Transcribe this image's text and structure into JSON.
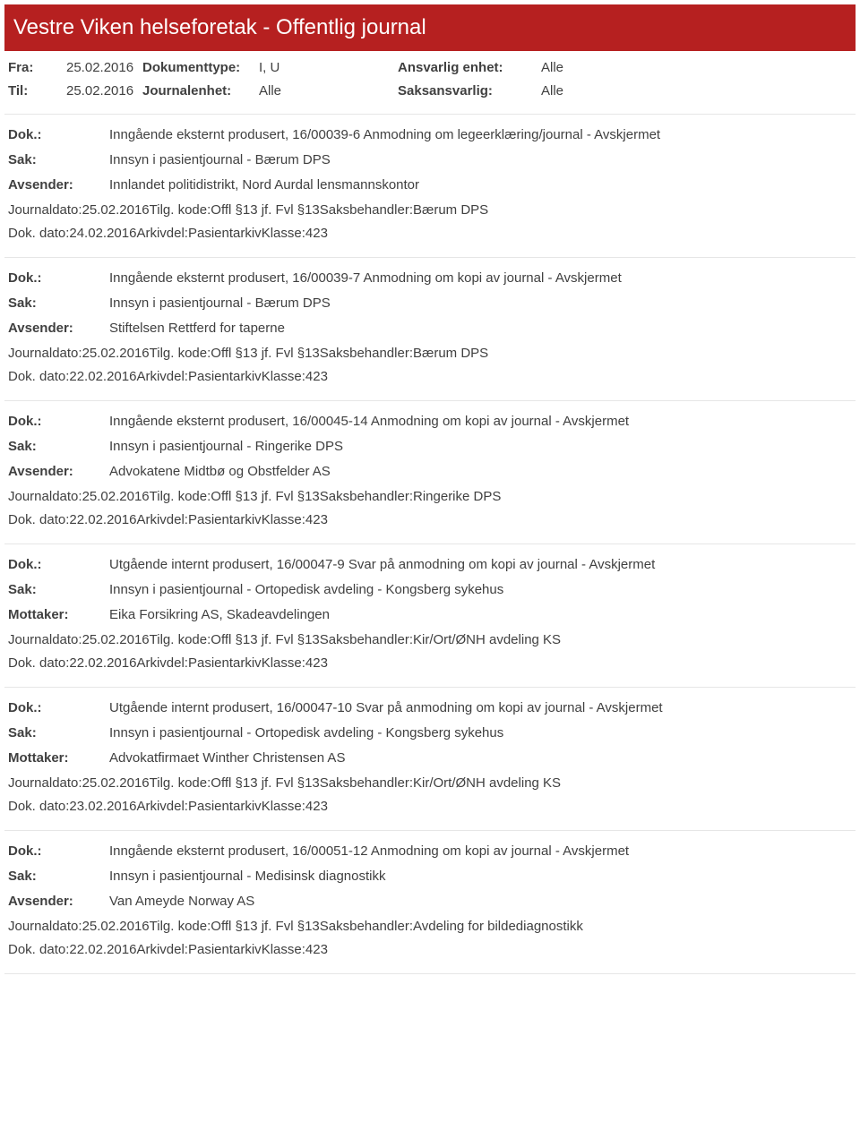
{
  "header": {
    "title": "Vestre Viken helseforetak - Offentlig journal"
  },
  "filters": {
    "fra_label": "Fra:",
    "fra_value": "25.02.2016",
    "til_label": "Til:",
    "til_value": "25.02.2016",
    "doktype_label": "Dokumenttype:",
    "doktype_value": "I, U",
    "journalenhet_label": "Journalenhet:",
    "journalenhet_value": "Alle",
    "ansvarlig_label": "Ansvarlig enhet:",
    "ansvarlig_value": "Alle",
    "saksansvarlig_label": "Saksansvarlig:",
    "saksansvarlig_value": "Alle"
  },
  "labels": {
    "dok": "Dok.:",
    "sak": "Sak:",
    "avsender": "Avsender:",
    "mottaker": "Mottaker:",
    "journaldato": "Journaldato:",
    "dokdato": "Dok. dato:",
    "tilgkode": "Tilg. kode:",
    "arkivdel": "Arkivdel:",
    "saksbehandler": "Saksbehandler:",
    "klasse": "Klasse:"
  },
  "entries": [
    {
      "dok": "Inngående eksternt produsert, 16/00039-6 Anmodning om legeerklæring/journal - Avskjermet",
      "sak": "Innsyn i pasientjournal - Bærum DPS",
      "party_label": "Avsender:",
      "party_value": "Innlandet politidistrikt, Nord Aurdal lensmannskontor",
      "journaldato": "25.02.2016",
      "tilgkode": "Offl §13 jf. Fvl §13",
      "saksbehandler": "Bærum DPS",
      "dokdato": "24.02.2016",
      "arkivdel": "Pasientarkiv",
      "klasse": "423"
    },
    {
      "dok": "Inngående eksternt produsert, 16/00039-7 Anmodning om kopi av journal - Avskjermet",
      "sak": "Innsyn i pasientjournal - Bærum DPS",
      "party_label": "Avsender:",
      "party_value": "Stiftelsen Rettferd for taperne",
      "journaldato": "25.02.2016",
      "tilgkode": "Offl §13 jf. Fvl §13",
      "saksbehandler": "Bærum DPS",
      "dokdato": "22.02.2016",
      "arkivdel": "Pasientarkiv",
      "klasse": "423"
    },
    {
      "dok": "Inngående eksternt produsert, 16/00045-14 Anmodning om kopi av journal - Avskjermet",
      "sak": "Innsyn i pasientjournal - Ringerike DPS",
      "party_label": "Avsender:",
      "party_value": "Advokatene Midtbø og Obstfelder AS",
      "journaldato": "25.02.2016",
      "tilgkode": "Offl §13 jf. Fvl §13",
      "saksbehandler": "Ringerike DPS",
      "dokdato": "22.02.2016",
      "arkivdel": "Pasientarkiv",
      "klasse": "423"
    },
    {
      "dok": "Utgående internt produsert, 16/00047-9 Svar på anmodning om kopi av journal - Avskjermet",
      "sak": "Innsyn i pasientjournal - Ortopedisk avdeling - Kongsberg sykehus",
      "party_label": "Mottaker:",
      "party_value": "Eika Forsikring AS, Skadeavdelingen",
      "journaldato": "25.02.2016",
      "tilgkode": "Offl §13 jf. Fvl §13",
      "saksbehandler": "Kir/Ort/ØNH avdeling KS",
      "dokdato": "22.02.2016",
      "arkivdel": "Pasientarkiv",
      "klasse": "423"
    },
    {
      "dok": "Utgående internt produsert, 16/00047-10 Svar på anmodning om kopi av journal - Avskjermet",
      "sak": "Innsyn i pasientjournal - Ortopedisk avdeling - Kongsberg sykehus",
      "party_label": "Mottaker:",
      "party_value": "Advokatfirmaet Winther Christensen AS",
      "journaldato": "25.02.2016",
      "tilgkode": "Offl §13 jf. Fvl §13",
      "saksbehandler": "Kir/Ort/ØNH avdeling KS",
      "dokdato": "23.02.2016",
      "arkivdel": "Pasientarkiv",
      "klasse": "423"
    },
    {
      "dok": "Inngående eksternt produsert, 16/00051-12 Anmodning om kopi av journal - Avskjermet",
      "sak": "Innsyn i pasientjournal - Medisinsk diagnostikk",
      "party_label": "Avsender:",
      "party_value": "Van Ameyde Norway AS",
      "journaldato": "25.02.2016",
      "tilgkode": "Offl §13 jf. Fvl §13",
      "saksbehandler": "Avdeling for bildediagnostikk",
      "dokdato": "22.02.2016",
      "arkivdel": "Pasientarkiv",
      "klasse": "423"
    }
  ]
}
